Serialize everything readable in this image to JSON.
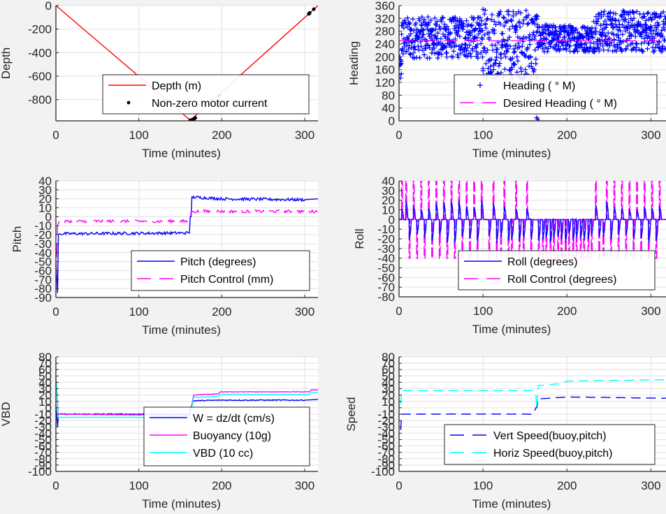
{
  "figure": {
    "background": "#f2f2f2",
    "axes_background": "#ffffff",
    "grid_color": "#e6e6e6"
  },
  "chart_data": [
    {
      "id": "depth",
      "type": "line",
      "title": "",
      "xlabel": "Time (minutes)",
      "ylabel": "Depth",
      "xlim": [
        0,
        316
      ],
      "ylim": [
        -980,
        0
      ],
      "xticks": [
        0,
        100,
        200,
        300
      ],
      "yticks": [
        0,
        -200,
        -400,
        -600,
        -800
      ],
      "grid": true,
      "legend_position": "bottom-center",
      "series": [
        {
          "name": "Depth (m)",
          "style": "line",
          "color": "#ff0000",
          "x": [
            0,
            162,
            316
          ],
          "y": [
            0,
            -975,
            0
          ]
        },
        {
          "name": "Non-zero motor current",
          "style": "dot",
          "color": "#000000",
          "x": [
            162,
            163,
            164,
            165,
            166,
            168,
            197,
            305,
            306,
            311
          ],
          "y": [
            -975,
            -975,
            -972,
            -970,
            -968,
            -955,
            -765,
            -70,
            -62,
            -30
          ]
        }
      ]
    },
    {
      "id": "heading",
      "type": "scatter",
      "title": "",
      "xlabel": "Time (minutes)",
      "ylabel": "Heading",
      "xlim": [
        0,
        318
      ],
      "ylim": [
        0,
        360
      ],
      "xticks": [
        0,
        100,
        200,
        300
      ],
      "yticks": [
        0,
        40,
        80,
        120,
        160,
        200,
        240,
        280,
        320,
        360
      ],
      "grid": true,
      "legend_position": "bottom-right",
      "series": [
        {
          "name": "Heading (  ° M)",
          "style": "plus",
          "color": "#0000ff",
          "segments": [
            {
              "x0": 0,
              "x1": 3,
              "lo": 120,
              "hi": 200
            },
            {
              "x0": 3,
              "x1": 100,
              "lo": 195,
              "hi": 325
            },
            {
              "x0": 100,
              "x1": 165,
              "lo": 130,
              "hi": 350
            },
            {
              "x0": 165,
              "x1": 232,
              "lo": 215,
              "hi": 300
            },
            {
              "x0": 232,
              "x1": 318,
              "lo": 215,
              "hi": 345
            }
          ],
          "outliers": [
            {
              "x": 165,
              "y": 5
            },
            {
              "x": 166,
              "y": 0
            },
            {
              "x": 164,
              "y": 10
            }
          ]
        },
        {
          "name": "Desired Heading (    ° M)",
          "style": "dashed",
          "color": "#ff00ff",
          "x": [
            0,
            318
          ],
          "y": [
            250,
            250
          ]
        }
      ]
    },
    {
      "id": "pitch",
      "type": "line",
      "title": "",
      "xlabel": "Time (minutes)",
      "ylabel": "Pitch",
      "xlim": [
        0,
        316
      ],
      "ylim": [
        -90,
        40
      ],
      "xticks": [
        0,
        100,
        200,
        300
      ],
      "yticks": [
        40,
        30,
        20,
        10,
        0,
        -10,
        -20,
        -30,
        -40,
        -50,
        -60,
        -70,
        -80,
        -90
      ],
      "grid": true,
      "legend_position": "bottom-right",
      "series": [
        {
          "name": "Pitch (degrees)",
          "style": "line",
          "color": "#0000ff",
          "x": [
            0,
            2,
            3,
            4,
            160,
            161,
            162,
            163,
            164,
            200,
            300,
            316
          ],
          "y": [
            -50,
            -85,
            -20,
            -19,
            -18,
            -18,
            0,
            0,
            22,
            20,
            19,
            20
          ]
        },
        {
          "name": "Pitch Control (mm)",
          "style": "dashed",
          "color": "#ff00ff",
          "x": [
            0,
            2,
            4,
            160,
            162,
            163,
            165,
            316
          ],
          "y": [
            -70,
            -10,
            -5,
            -5,
            0,
            5,
            6,
            6
          ]
        }
      ]
    },
    {
      "id": "roll",
      "type": "line",
      "title": "",
      "xlabel": "Time (minutes)",
      "ylabel": "Roll",
      "xlim": [
        0,
        318
      ],
      "ylim": [
        -80,
        40
      ],
      "xticks": [
        0,
        100,
        200,
        300
      ],
      "yticks": [
        40,
        30,
        20,
        10,
        0,
        -10,
        -20,
        -30,
        -40,
        -50,
        -60,
        -70,
        -80
      ],
      "grid": true,
      "legend_position": "bottom-right",
      "series": [
        {
          "name": "Roll (degrees)",
          "style": "line",
          "color": "#0000ff",
          "baseline": 0,
          "excursion": [
            -25,
            20
          ]
        },
        {
          "name": "Roll Control (degrees)",
          "style": "dashed",
          "color": "#ff00ff",
          "baseline": 0,
          "excursion": [
            -40,
            40
          ]
        }
      ],
      "pulses": [
        3,
        8,
        12,
        17,
        21,
        26,
        30,
        35,
        39,
        44,
        48,
        53,
        57,
        62,
        66,
        71,
        75,
        80,
        84,
        89,
        93,
        98,
        107,
        112,
        116,
        121,
        125,
        130,
        134,
        139,
        143,
        148,
        152,
        157,
        166,
        171,
        175,
        180,
        184,
        189,
        193,
        198,
        202,
        207,
        211,
        216,
        220,
        225,
        229,
        234,
        238,
        243,
        247,
        252,
        256,
        261,
        265,
        270,
        274,
        279,
        283,
        288,
        292,
        297,
        301,
        306,
        310
      ],
      "up_pulses": [
        3,
        8,
        17,
        26,
        35,
        44,
        53,
        62,
        71,
        80,
        89,
        98,
        112,
        125,
        139,
        152,
        234,
        247,
        256,
        265,
        274,
        283,
        292,
        301,
        310
      ]
    },
    {
      "id": "vbd",
      "type": "line",
      "title": "",
      "xlabel": "Time (minutes)",
      "ylabel": "VBD",
      "xlim": [
        0,
        316
      ],
      "ylim": [
        -100,
        80
      ],
      "xticks": [
        0,
        100,
        200,
        300
      ],
      "yticks": [
        80,
        70,
        60,
        50,
        40,
        30,
        20,
        10,
        0,
        -10,
        -20,
        -30,
        -40,
        -50,
        -60,
        -70,
        -80,
        -90,
        -100
      ],
      "grid": true,
      "legend_position": "bottom-right",
      "series": [
        {
          "name": "W = dz/dt (cm/s)",
          "style": "line",
          "color": "#0000ff",
          "x": [
            0,
            2,
            3,
            4,
            160,
            161,
            164,
            166,
            200,
            300,
            315,
            316
          ],
          "y": [
            5,
            -30,
            -10,
            -10,
            -10,
            -10,
            5,
            11,
            12,
            12,
            13,
            14
          ]
        },
        {
          "name": "Buoyancy (10g)",
          "style": "line",
          "color": "#ff00ff",
          "x": [
            0,
            3,
            4,
            160,
            162,
            166,
            196,
            198,
            306,
            308,
            316
          ],
          "y": [
            50,
            -10,
            -10,
            -12,
            -12,
            20,
            22,
            25,
            25,
            28,
            28
          ]
        },
        {
          "name": "VBD (10 cc)",
          "style": "line",
          "color": "#00ffff",
          "x": [
            0,
            3,
            4,
            160,
            162,
            166,
            196,
            198,
            306,
            308,
            316
          ],
          "y": [
            48,
            -15,
            -15,
            -15,
            -15,
            16,
            18,
            21,
            21,
            24,
            24
          ]
        }
      ]
    },
    {
      "id": "speed",
      "type": "line",
      "title": "",
      "xlabel": "Time (minutes)",
      "ylabel": "Speed",
      "xlim": [
        0,
        318
      ],
      "ylim": [
        -100,
        80
      ],
      "xticks": [
        0,
        100,
        200,
        300
      ],
      "yticks": [
        80,
        70,
        60,
        50,
        40,
        30,
        20,
        10,
        0,
        -10,
        -20,
        -30,
        -40,
        -50,
        -60,
        -70,
        -80,
        -90,
        -100
      ],
      "grid": true,
      "legend_position": "bottom-right",
      "series": [
        {
          "name": "Vert Speed(buoy,pitch)",
          "style": "dashed",
          "color": "#0000ff",
          "x": [
            2,
            3,
            160,
            163,
            164,
            166,
            200,
            318
          ],
          "y": [
            -35,
            -10,
            -10,
            0,
            0,
            14,
            17,
            15
          ]
        },
        {
          "name": "Horiz Speed(buoy,pitch)",
          "style": "dashed",
          "color": "#00ffff",
          "x": [
            2,
            3,
            160,
            163,
            164,
            166,
            195,
            200,
            318
          ],
          "y": [
            5,
            27,
            27,
            20,
            0,
            35,
            38,
            42,
            44
          ]
        }
      ]
    }
  ]
}
